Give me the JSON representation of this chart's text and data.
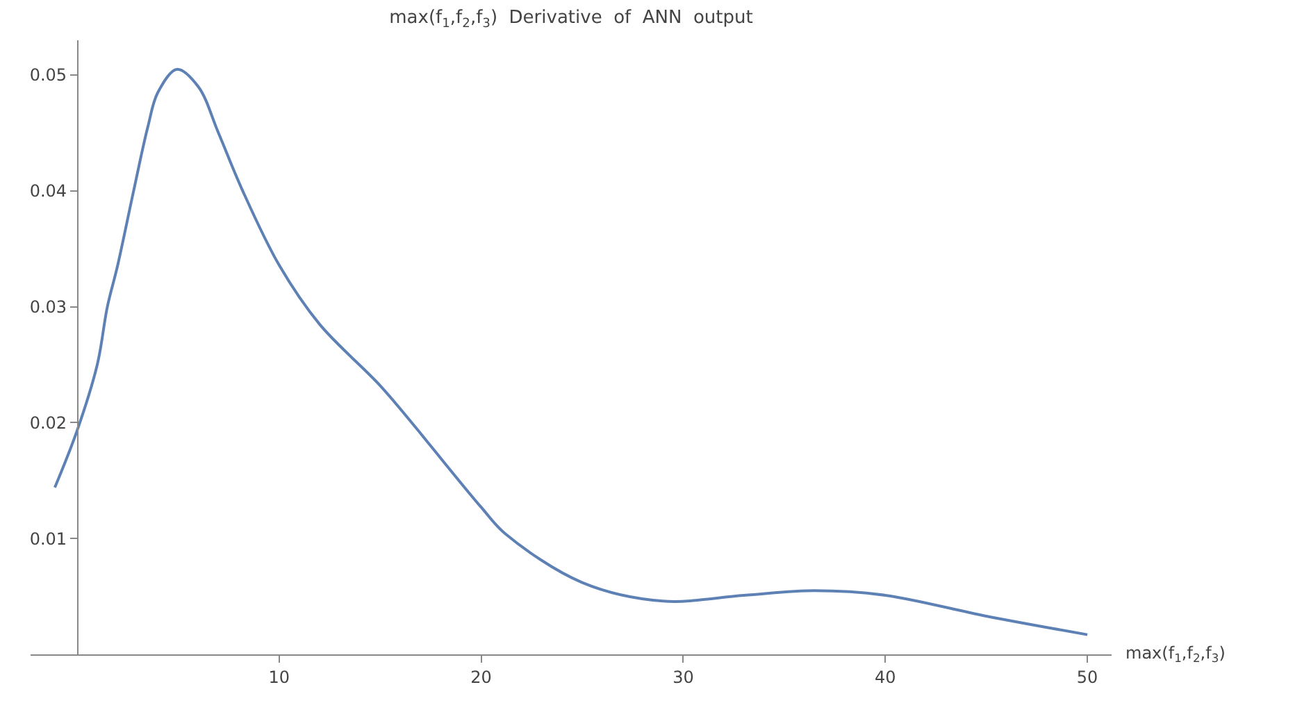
{
  "chart_data": {
    "type": "line",
    "title": "max(f$_{1}$,f$_{2}$,f$_{3}$)  Derivative  of  ANN  output",
    "xlabel": "max(f$_{1}$,f$_{2}$,f$_{3}$)",
    "series": [
      {
        "color": "#5e81b5",
        "x": [
          -1.1,
          0,
          1,
          1.5,
          2,
          2.8,
          3.5,
          4,
          4.95,
          6,
          7,
          8.2,
          10,
          12,
          15,
          16.8,
          17.5,
          20,
          21.2,
          25,
          29,
          33,
          36.5,
          40,
          45,
          50
        ],
        "values": [
          0.0144,
          0.0193,
          0.025,
          0.03,
          0.0335,
          0.04,
          0.0455,
          0.0485,
          0.0505,
          0.049,
          0.045,
          0.04,
          0.0336,
          0.0285,
          0.0232,
          0.0195,
          0.018,
          0.0127,
          0.0104,
          0.0062,
          0.0046,
          0.0051,
          0.0055,
          0.0051,
          0.0033,
          0.0017
        ]
      }
    ],
    "xlim": [
      -2.3,
      51.2
    ],
    "ylim": [
      0,
      0.053
    ],
    "xticks": [
      10,
      20,
      30,
      40,
      50
    ],
    "yticks": [
      0.01,
      0.02,
      0.03,
      0.04,
      0.05
    ]
  }
}
